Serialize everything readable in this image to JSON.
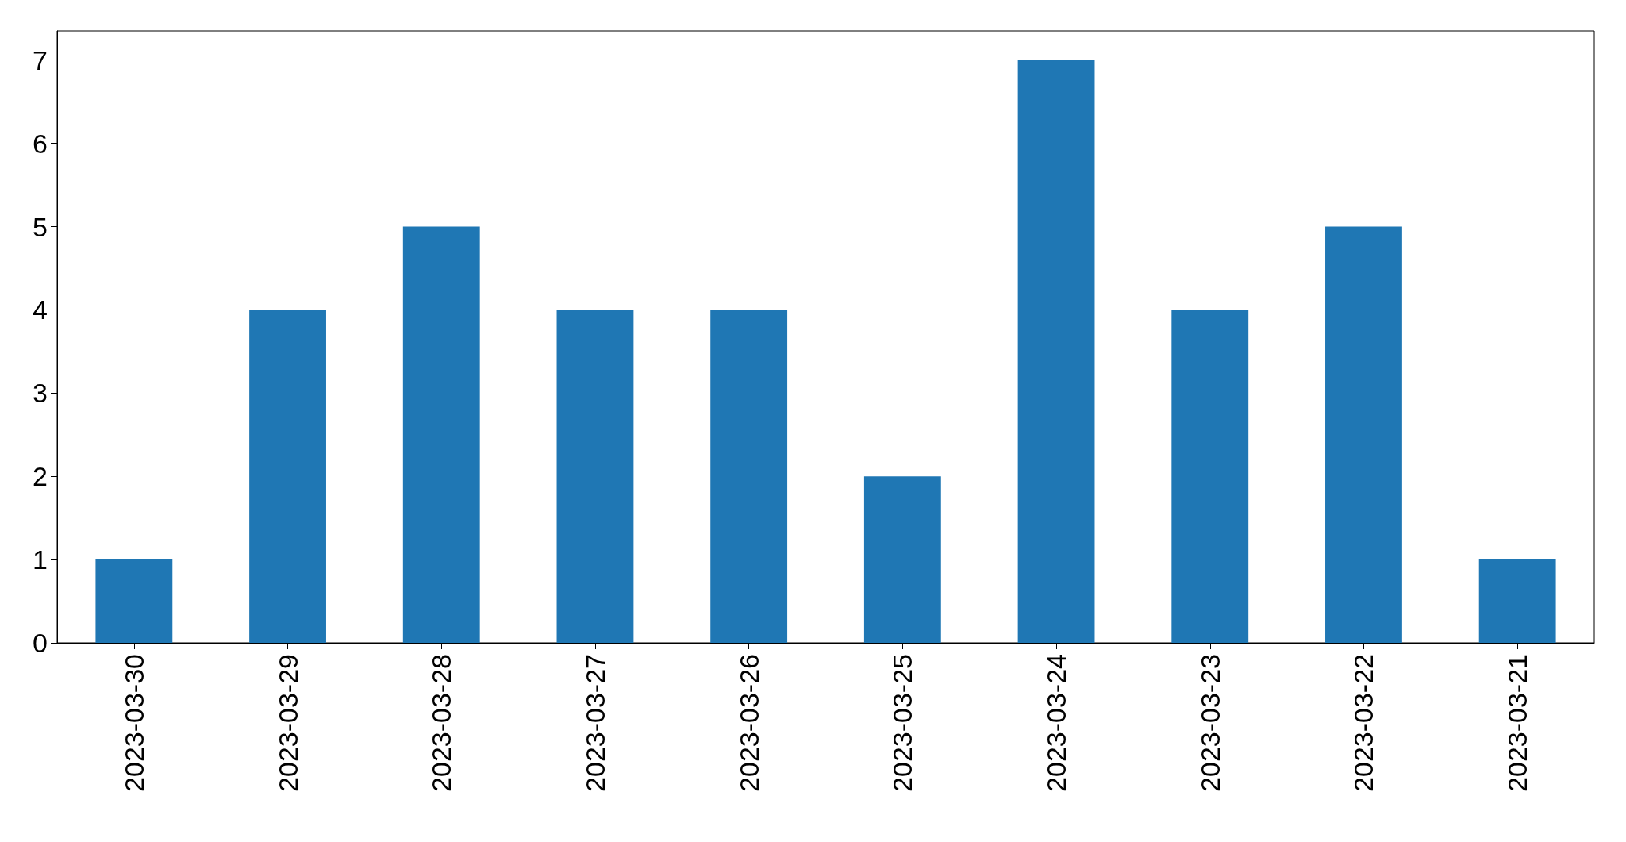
{
  "chart_data": {
    "type": "bar",
    "categories": [
      "2023-03-30",
      "2023-03-29",
      "2023-03-28",
      "2023-03-27",
      "2023-03-26",
      "2023-03-25",
      "2023-03-24",
      "2023-03-23",
      "2023-03-22",
      "2023-03-21"
    ],
    "values": [
      1,
      4,
      5,
      4,
      4,
      2,
      7,
      4,
      5,
      1
    ],
    "color": "#1f77b4",
    "ylim": [
      0,
      7.35
    ],
    "yticks": [
      0,
      1,
      2,
      3,
      4,
      5,
      6,
      7
    ]
  }
}
